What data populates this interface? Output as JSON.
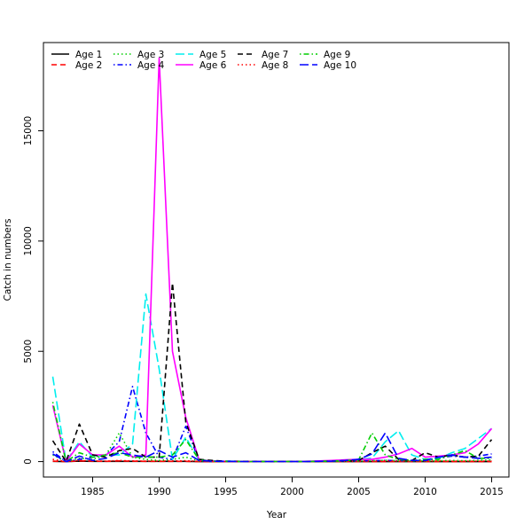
{
  "chart_data": {
    "type": "line",
    "title": "",
    "xlabel": "Year",
    "ylabel": "Catch in numbers",
    "xlim": [
      1981.3,
      2016.3
    ],
    "ylim": [
      -700,
      19000
    ],
    "x_ticks": [
      1985,
      1990,
      1995,
      2000,
      2005,
      2010,
      2015
    ],
    "y_ticks": [
      0,
      5000,
      10000,
      15000
    ],
    "grid": false,
    "legend_position": "top-left",
    "x": [
      1982,
      1983,
      1984,
      1985,
      1986,
      1987,
      1988,
      1989,
      1990,
      1991,
      1992,
      1993,
      1994,
      1995,
      1996,
      1997,
      1998,
      1999,
      2000,
      2001,
      2002,
      2003,
      2004,
      2005,
      2006,
      2007,
      2008,
      2009,
      2010,
      2011,
      2012,
      2013,
      2014,
      2015
    ],
    "series": [
      {
        "name": "Age 1",
        "color": "#000000",
        "dash": "solid",
        "values": [
          10,
          0,
          20,
          10,
          10,
          10,
          10,
          10,
          10,
          10,
          10,
          0,
          0,
          0,
          0,
          0,
          0,
          0,
          0,
          0,
          0,
          0,
          0,
          0,
          0,
          0,
          0,
          0,
          0,
          0,
          0,
          0,
          0,
          0
        ]
      },
      {
        "name": "Age 2",
        "color": "#ff0000",
        "dash": "dashed",
        "values": [
          20,
          0,
          30,
          20,
          10,
          30,
          20,
          10,
          10,
          10,
          10,
          0,
          0,
          0,
          0,
          0,
          0,
          0,
          0,
          0,
          0,
          0,
          0,
          0,
          0,
          0,
          0,
          0,
          0,
          0,
          0,
          0,
          0,
          0
        ]
      },
      {
        "name": "Age 3",
        "color": "#00cd00",
        "dash": "dotted",
        "values": [
          300,
          0,
          150,
          100,
          300,
          1300,
          200,
          100,
          50,
          100,
          200,
          30,
          10,
          10,
          5,
          5,
          5,
          5,
          5,
          5,
          5,
          10,
          10,
          20,
          40,
          60,
          40,
          20,
          30,
          40,
          50,
          40,
          60,
          80
        ]
      },
      {
        "name": "Age 4",
        "color": "#0000ff",
        "dash": "dotdash",
        "values": [
          450,
          0,
          100,
          200,
          300,
          900,
          3400,
          1300,
          200,
          100,
          1600,
          50,
          20,
          10,
          10,
          10,
          5,
          5,
          5,
          5,
          10,
          10,
          20,
          30,
          40,
          50,
          40,
          50,
          60,
          150,
          250,
          200,
          250,
          350
        ]
      },
      {
        "name": "Age 5",
        "color": "#00eeee",
        "dash": "longdash",
        "values": [
          3850,
          0,
          900,
          200,
          300,
          300,
          800,
          7600,
          4200,
          100,
          1100,
          80,
          30,
          20,
          10,
          10,
          5,
          5,
          5,
          10,
          20,
          30,
          50,
          100,
          150,
          900,
          1400,
          300,
          100,
          150,
          400,
          600,
          1050,
          1500
        ]
      },
      {
        "name": "Age 6",
        "color": "#ff00ff",
        "dash": "solid",
        "values": [
          2550,
          0,
          800,
          300,
          300,
          700,
          200,
          300,
          18300,
          5000,
          2000,
          80,
          30,
          10,
          10,
          10,
          5,
          5,
          5,
          10,
          30,
          50,
          80,
          100,
          100,
          200,
          350,
          600,
          200,
          250,
          300,
          400,
          800,
          1500
        ]
      },
      {
        "name": "Age 7",
        "color": "#000000",
        "dash": "dashed",
        "values": [
          950,
          0,
          1700,
          300,
          200,
          500,
          600,
          200,
          200,
          8100,
          1800,
          100,
          50,
          20,
          10,
          10,
          5,
          5,
          5,
          5,
          10,
          20,
          30,
          50,
          400,
          700,
          100,
          50,
          400,
          200,
          300,
          200,
          250,
          1000
        ]
      },
      {
        "name": "Age 8",
        "color": "#ff0000",
        "dash": "dotted",
        "values": [
          100,
          0,
          50,
          30,
          20,
          50,
          30,
          20,
          20,
          30,
          40,
          10,
          5,
          5,
          5,
          5,
          5,
          5,
          5,
          5,
          5,
          10,
          10,
          20,
          20,
          30,
          20,
          20,
          20,
          30,
          20,
          20,
          20,
          30
        ]
      },
      {
        "name": "Age 9",
        "color": "#00cd00",
        "dash": "dotdash",
        "values": [
          2700,
          0,
          400,
          200,
          300,
          400,
          200,
          200,
          200,
          300,
          1000,
          80,
          20,
          10,
          5,
          5,
          5,
          5,
          5,
          5,
          10,
          20,
          50,
          80,
          1300,
          300,
          100,
          50,
          100,
          100,
          300,
          500,
          150,
          150
        ]
      },
      {
        "name": "Age 10",
        "color": "#0000ff",
        "dash": "longdash",
        "values": [
          350,
          0,
          250,
          50,
          150,
          400,
          300,
          200,
          500,
          200,
          400,
          50,
          20,
          10,
          5,
          5,
          5,
          5,
          5,
          5,
          10,
          20,
          50,
          100,
          350,
          1300,
          150,
          50,
          50,
          200,
          300,
          200,
          150,
          200
        ]
      }
    ]
  }
}
